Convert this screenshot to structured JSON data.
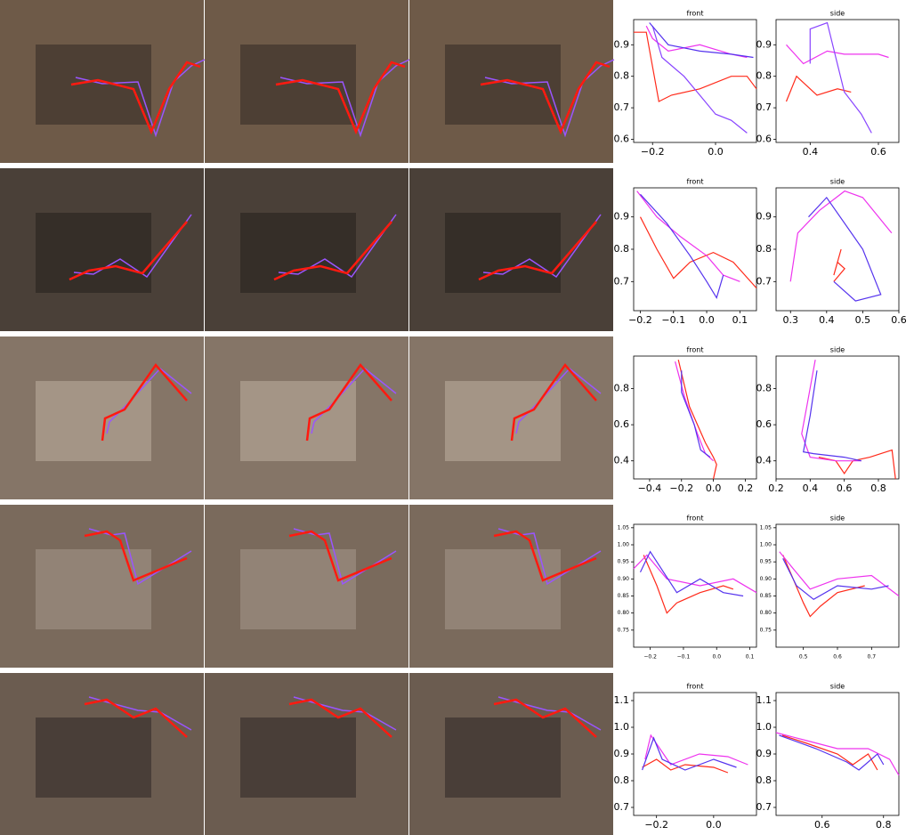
{
  "chart_data": [
    {
      "type": "line",
      "title": "front",
      "xlim": [
        -0.26,
        0.13
      ],
      "ylim": [
        0.59,
        0.98
      ],
      "xticks": [
        {
          "value": -0.2,
          "label": "−0.2"
        },
        {
          "value": 0,
          "label": "0.0"
        }
      ],
      "yticks": [
        0.6,
        0.7,
        0.8,
        0.9
      ],
      "series": [
        {
          "color": "#ff2a1a",
          "x": [
            -0.26,
            -0.22,
            -0.18,
            -0.14,
            -0.05,
            0.05,
            0.1,
            0.13
          ],
          "values": [
            0.94,
            0.94,
            0.72,
            0.74,
            0.76,
            0.8,
            0.8,
            0.76
          ]
        },
        {
          "color": "#ee33ee",
          "x": [
            -0.22,
            -0.2,
            -0.15,
            -0.05,
            0.05,
            0.1
          ],
          "values": [
            0.96,
            0.92,
            0.88,
            0.9,
            0.87,
            0.86
          ]
        },
        {
          "color": "#8844ff",
          "x": [
            -0.2,
            -0.17,
            -0.1,
            -0.05,
            0.0,
            0.05,
            0.1
          ],
          "values": [
            0.96,
            0.86,
            0.8,
            0.74,
            0.68,
            0.66,
            0.62
          ]
        },
        {
          "color": "#5533ee",
          "x": [
            -0.21,
            -0.15,
            -0.05,
            0.05,
            0.12
          ],
          "values": [
            0.97,
            0.9,
            0.88,
            0.87,
            0.86
          ]
        }
      ]
    },
    {
      "type": "line",
      "title": "side",
      "xlim": [
        0.3,
        0.66
      ],
      "ylim": [
        0.59,
        0.98
      ],
      "xticks": [
        0.4,
        0.6
      ],
      "yticks": [
        0.6,
        0.7,
        0.8,
        0.9
      ],
      "series": [
        {
          "color": "#ff2a1a",
          "x": [
            0.52,
            0.48,
            0.42,
            0.38,
            0.36,
            0.33
          ],
          "values": [
            0.75,
            0.76,
            0.74,
            0.78,
            0.8,
            0.72
          ]
        },
        {
          "color": "#ee33ee",
          "x": [
            0.33,
            0.38,
            0.45,
            0.5,
            0.6,
            0.63
          ],
          "values": [
            0.9,
            0.84,
            0.88,
            0.87,
            0.87,
            0.86
          ]
        },
        {
          "color": "#8844ff",
          "x": [
            0.4,
            0.4,
            0.45,
            0.5,
            0.55,
            0.58
          ],
          "values": [
            0.84,
            0.95,
            0.97,
            0.75,
            0.68,
            0.62
          ]
        }
      ]
    },
    {
      "type": "line",
      "title": "front",
      "xlim": [
        -0.22,
        0.15
      ],
      "ylim": [
        0.61,
        0.99
      ],
      "xticks": [
        {
          "value": -0.2,
          "label": "−0.2"
        },
        {
          "value": -0.1,
          "label": "−0.1"
        },
        {
          "value": 0,
          "label": "0.0"
        },
        0.1
      ],
      "yticks": [
        0.7,
        0.8,
        0.9
      ],
      "series": [
        {
          "color": "#ff2a1a",
          "x": [
            -0.2,
            -0.15,
            -0.1,
            -0.05,
            0.02,
            0.08,
            0.15
          ],
          "values": [
            0.9,
            0.8,
            0.71,
            0.76,
            0.79,
            0.76,
            0.68
          ]
        },
        {
          "color": "#ee33ee",
          "x": [
            -0.21,
            -0.15,
            -0.08,
            0.0,
            0.05,
            0.1
          ],
          "values": [
            0.98,
            0.9,
            0.84,
            0.78,
            0.72,
            0.7
          ]
        },
        {
          "color": "#5533ee",
          "x": [
            -0.2,
            -0.12,
            -0.05,
            0.0,
            0.03,
            0.05
          ],
          "values": [
            0.97,
            0.88,
            0.78,
            0.7,
            0.65,
            0.72
          ]
        }
      ]
    },
    {
      "type": "line",
      "title": "side",
      "xlim": [
        0.26,
        0.6
      ],
      "ylim": [
        0.61,
        0.99
      ],
      "xticks": [
        0.3,
        0.4,
        0.5,
        0.6
      ],
      "yticks": [
        0.7,
        0.8,
        0.9
      ],
      "series": [
        {
          "color": "#ff2a1a",
          "x": [
            0.42,
            0.44,
            0.43,
            0.45,
            0.42
          ],
          "values": [
            0.72,
            0.8,
            0.76,
            0.74,
            0.7
          ]
        },
        {
          "color": "#ee33ee",
          "x": [
            0.3,
            0.32,
            0.38,
            0.45,
            0.5,
            0.58
          ],
          "values": [
            0.7,
            0.85,
            0.92,
            0.98,
            0.96,
            0.85
          ]
        },
        {
          "color": "#5533ee",
          "x": [
            0.35,
            0.4,
            0.5,
            0.55,
            0.48,
            0.42
          ],
          "values": [
            0.9,
            0.96,
            0.8,
            0.66,
            0.64,
            0.7
          ]
        }
      ]
    },
    {
      "type": "line",
      "title": "front",
      "xlim": [
        -0.5,
        0.27
      ],
      "ylim": [
        0.3,
        0.98
      ],
      "xticks": [
        {
          "value": -0.4,
          "label": "−0.4"
        },
        {
          "value": -0.2,
          "label": "−0.2"
        },
        {
          "value": 0,
          "label": "0.0"
        },
        0.2
      ],
      "yticks": [
        0.4,
        0.6,
        0.8
      ],
      "series": [
        {
          "color": "#ff2a1a",
          "x": [
            -0.22,
            -0.15,
            -0.05,
            0.0,
            0.02,
            0.0
          ],
          "values": [
            0.96,
            0.7,
            0.5,
            0.42,
            0.38,
            0.3
          ]
        },
        {
          "color": "#ee33ee",
          "x": [
            -0.24,
            -0.18,
            -0.1,
            -0.05,
            0.0
          ],
          "values": [
            0.95,
            0.75,
            0.55,
            0.44,
            0.4
          ]
        },
        {
          "color": "#5533ee",
          "x": [
            -0.2,
            -0.2,
            -0.12,
            -0.08,
            -0.02
          ],
          "values": [
            0.9,
            0.78,
            0.6,
            0.46,
            0.42
          ]
        }
      ]
    },
    {
      "type": "line",
      "title": "side",
      "xlim": [
        0.2,
        0.92
      ],
      "ylim": [
        0.3,
        0.98
      ],
      "xticks": [
        0.2,
        0.4,
        0.6,
        0.8
      ],
      "yticks": [
        0.4,
        0.6,
        0.8
      ],
      "series": [
        {
          "color": "#ff2a1a",
          "x": [
            0.45,
            0.55,
            0.6,
            0.65,
            0.75,
            0.88,
            0.9
          ],
          "values": [
            0.42,
            0.4,
            0.33,
            0.4,
            0.42,
            0.46,
            0.3
          ]
        },
        {
          "color": "#ee33ee",
          "x": [
            0.43,
            0.38,
            0.35,
            0.4,
            0.55,
            0.7
          ],
          "values": [
            0.96,
            0.7,
            0.55,
            0.42,
            0.4,
            0.4
          ]
        },
        {
          "color": "#5533ee",
          "x": [
            0.44,
            0.4,
            0.36,
            0.42,
            0.6,
            0.7
          ],
          "values": [
            0.9,
            0.65,
            0.45,
            0.44,
            0.42,
            0.4
          ]
        }
      ]
    },
    {
      "type": "line",
      "title": "front",
      "xlim": [
        -0.25,
        0.12
      ],
      "ylim": [
        0.7,
        1.06
      ],
      "xticks": [
        {
          "value": -0.2,
          "label": "−0.2"
        },
        {
          "value": -0.1,
          "label": "−0.1"
        },
        {
          "value": 0,
          "label": "0.0"
        },
        0.1
      ],
      "yticks": [
        0.75,
        {
          "value": 0.8,
          "label": "0.80"
        },
        0.85,
        {
          "value": 0.9,
          "label": "0.90"
        },
        0.95,
        {
          "value": 1,
          "label": "1.00"
        },
        1.05
      ],
      "series": [
        {
          "color": "#ff2a1a",
          "x": [
            -0.22,
            -0.18,
            -0.15,
            -0.12,
            -0.05,
            0.02,
            0.05
          ],
          "values": [
            0.97,
            0.88,
            0.8,
            0.83,
            0.86,
            0.88,
            0.87
          ]
        },
        {
          "color": "#ee33ee",
          "x": [
            -0.25,
            -0.21,
            -0.15,
            -0.05,
            0.05,
            0.12
          ],
          "values": [
            0.93,
            0.97,
            0.9,
            0.88,
            0.9,
            0.86
          ]
        },
        {
          "color": "#5533ee",
          "x": [
            -0.23,
            -0.2,
            -0.12,
            -0.05,
            0.02,
            0.08
          ],
          "values": [
            0.92,
            0.98,
            0.86,
            0.9,
            0.86,
            0.85
          ]
        }
      ]
    },
    {
      "type": "line",
      "title": "side",
      "xlim": [
        0.42,
        0.78
      ],
      "ylim": [
        0.7,
        1.06
      ],
      "xticks": [
        0.5,
        0.6,
        0.7
      ],
      "yticks": [
        0.75,
        {
          "value": 0.8,
          "label": "0.80"
        },
        0.85,
        {
          "value": 0.9,
          "label": "0.90"
        },
        0.95,
        {
          "value": 1,
          "label": "1.00"
        },
        1.05
      ],
      "series": [
        {
          "color": "#ff2a1a",
          "x": [
            0.44,
            0.47,
            0.5,
            0.52,
            0.55,
            0.6,
            0.68
          ],
          "values": [
            0.97,
            0.9,
            0.83,
            0.79,
            0.82,
            0.86,
            0.88
          ]
        },
        {
          "color": "#ee33ee",
          "x": [
            0.43,
            0.47,
            0.52,
            0.6,
            0.7,
            0.78
          ],
          "values": [
            0.98,
            0.93,
            0.87,
            0.9,
            0.91,
            0.85
          ]
        },
        {
          "color": "#5533ee",
          "x": [
            0.44,
            0.48,
            0.53,
            0.6,
            0.7,
            0.75
          ],
          "values": [
            0.96,
            0.88,
            0.84,
            0.88,
            0.87,
            0.88
          ]
        }
      ]
    },
    {
      "type": "line",
      "title": "front",
      "xlim": [
        -0.28,
        0.15
      ],
      "ylim": [
        0.67,
        1.13
      ],
      "xticks": [
        {
          "value": -0.2,
          "label": "−0.2"
        },
        {
          "value": 0,
          "label": "0.0"
        }
      ],
      "yticks": [
        0.7,
        0.8,
        0.9,
        {
          "value": 1,
          "label": "1.0"
        },
        1.1
      ],
      "series": [
        {
          "color": "#ff2a1a",
          "x": [
            -0.25,
            -0.2,
            -0.15,
            -0.1,
            0.0,
            0.05
          ],
          "values": [
            0.85,
            0.88,
            0.84,
            0.86,
            0.85,
            0.83
          ]
        },
        {
          "color": "#ee33ee",
          "x": [
            -0.24,
            -0.22,
            -0.15,
            -0.05,
            0.05,
            0.12
          ],
          "values": [
            0.88,
            0.97,
            0.86,
            0.9,
            0.89,
            0.86
          ]
        },
        {
          "color": "#5533ee",
          "x": [
            -0.25,
            -0.21,
            -0.18,
            -0.1,
            0.0,
            0.08
          ],
          "values": [
            0.84,
            0.96,
            0.88,
            0.84,
            0.88,
            0.85
          ]
        }
      ]
    },
    {
      "type": "line",
      "title": "side",
      "xlim": [
        0.45,
        0.85
      ],
      "ylim": [
        0.67,
        1.13
      ],
      "xticks": [
        0.6,
        0.8
      ],
      "yticks": [
        0.7,
        0.8,
        0.9,
        {
          "value": 1,
          "label": "1.0"
        },
        1.1
      ],
      "series": [
        {
          "color": "#ff2a1a",
          "x": [
            0.47,
            0.55,
            0.65,
            0.7,
            0.75,
            0.78
          ],
          "values": [
            0.97,
            0.94,
            0.9,
            0.86,
            0.9,
            0.84
          ]
        },
        {
          "color": "#ee33ee",
          "x": [
            0.45,
            0.55,
            0.65,
            0.75,
            0.82,
            0.85
          ],
          "values": [
            0.98,
            0.95,
            0.92,
            0.92,
            0.88,
            0.82
          ]
        },
        {
          "color": "#5533ee",
          "x": [
            0.46,
            0.58,
            0.68,
            0.72,
            0.78,
            0.8
          ],
          "values": [
            0.97,
            0.92,
            0.87,
            0.84,
            0.9,
            0.86
          ]
        }
      ]
    }
  ]
}
